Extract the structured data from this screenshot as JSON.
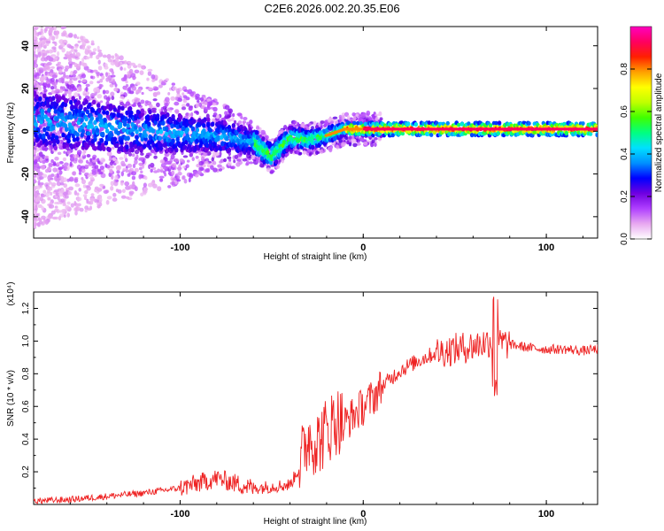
{
  "page": {
    "title": "C2E6.2026.002.20.35.E06"
  },
  "chart_data": [
    {
      "type": "heatmap",
      "title": "C2E6.2026.002.20.35.E06",
      "xlabel": "Height of straight line (km)",
      "ylabel": "Frequency (Hz)",
      "xlim": [
        -180,
        128
      ],
      "ylim": [
        -50,
        49
      ],
      "xticks": [
        "-100",
        "0",
        "100"
      ],
      "yticks": [
        "40",
        "20",
        "0",
        "-20",
        "-40"
      ],
      "colorbar": {
        "label": "Normalized spectral amplitude",
        "range": [
          0,
          1
        ],
        "ticks": [
          "0.0",
          "0.2",
          "0.4",
          "0.6",
          "0.8"
        ],
        "colors": [
          "#ffffff",
          "#e8a8f0",
          "#b040ff",
          "#7000e0",
          "#0000ff",
          "#0090ff",
          "#00e0ff",
          "#00ff80",
          "#40ff00",
          "#c0ff00",
          "#ffff00",
          "#ffa000",
          "#ff2000",
          "#ff0060",
          "#ff00c0"
        ]
      },
      "ridge": {
        "description_points_x": [
          -180,
          -160,
          -140,
          -120,
          -100,
          -80,
          -60,
          -50,
          -40,
          -30,
          -20,
          -10,
          0,
          20,
          40,
          60,
          80,
          100,
          128
        ],
        "description_points_y": [
          5,
          4,
          2,
          0,
          -1,
          -2,
          -5,
          -12,
          -3,
          -4,
          -2,
          1,
          1,
          1,
          1,
          1,
          1,
          1,
          1
        ]
      }
    },
    {
      "type": "line",
      "xlabel": "Height of straight line (km)",
      "ylabel": "SNR (10 * v/v)",
      "scale_label": "(x10⁴)",
      "xlim": [
        -180,
        128
      ],
      "ylim": [
        0,
        1.3
      ],
      "xticks": [
        "-100",
        "0",
        "100"
      ],
      "yticks": [
        "1.2",
        "1.0",
        "0.8",
        "0.6",
        "0.4",
        "0.2"
      ],
      "series": [
        {
          "name": "SNR",
          "color": "#ee2222",
          "x": [
            -180,
            -160,
            -140,
            -120,
            -100,
            -90,
            -80,
            -70,
            -60,
            -50,
            -40,
            -35,
            -30,
            -25,
            -20,
            -15,
            -10,
            -5,
            0,
            5,
            10,
            20,
            30,
            40,
            50,
            60,
            70,
            80,
            90,
            100,
            110,
            120,
            128
          ],
          "y": [
            0.02,
            0.03,
            0.05,
            0.07,
            0.1,
            0.13,
            0.16,
            0.13,
            0.1,
            0.11,
            0.12,
            0.22,
            0.42,
            0.38,
            0.45,
            0.52,
            0.5,
            0.55,
            0.6,
            0.65,
            0.72,
            0.82,
            0.88,
            0.93,
            0.95,
            0.97,
            1.0,
            0.98,
            0.96,
            0.95,
            0.95,
            0.94,
            0.95
          ]
        }
      ]
    }
  ]
}
